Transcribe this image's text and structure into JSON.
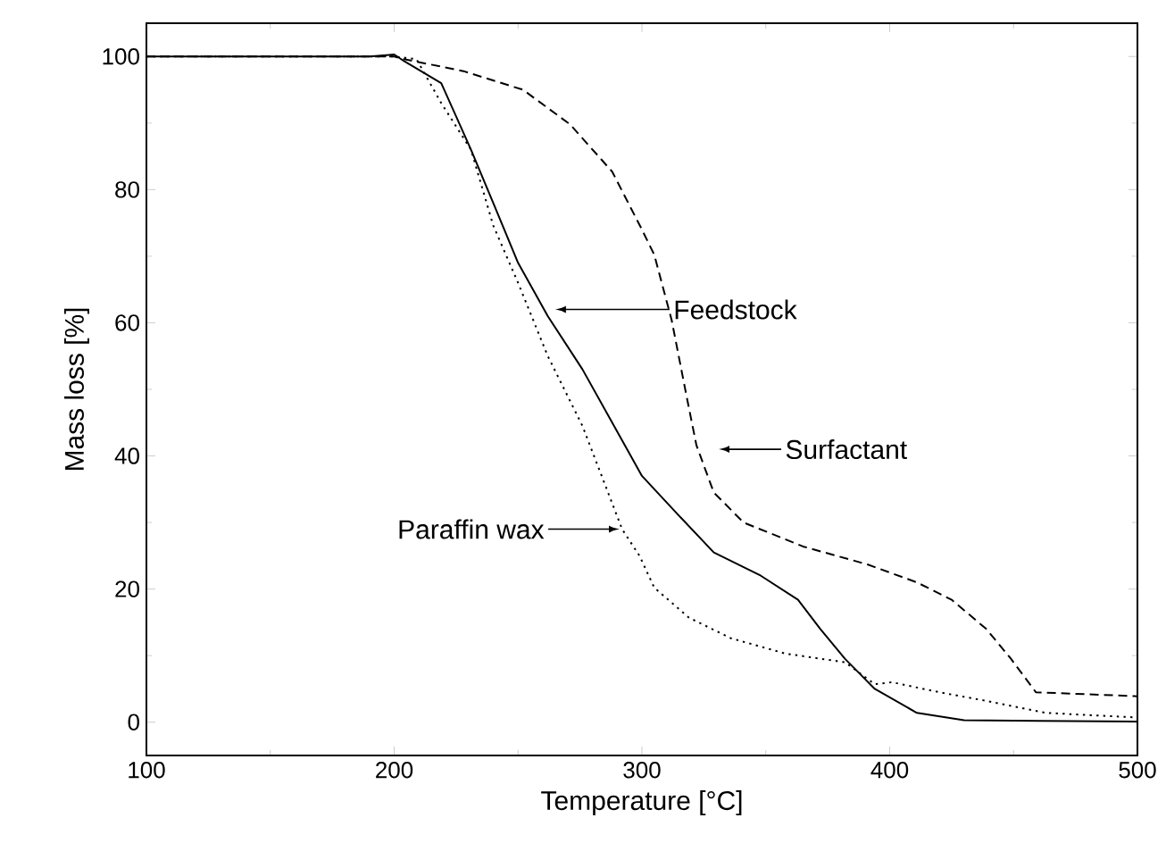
{
  "chart_data": {
    "type": "line",
    "xlabel": "Temperature [°C]",
    "ylabel": "Mass loss [%]",
    "xlim": [
      100,
      500
    ],
    "ylim": [
      -5,
      105
    ],
    "xticks": [
      100,
      200,
      300,
      400,
      500
    ],
    "yticks": [
      0,
      20,
      40,
      60,
      80,
      100
    ],
    "grid": false,
    "marker": "none",
    "series": [
      {
        "color": "#000000",
        "line_style": "solid",
        "x": [
          100,
          150,
          190,
          197,
          200,
          204,
          219,
          231,
          240,
          250,
          262,
          276,
          288,
          300,
          315,
          329,
          348,
          363,
          372,
          382,
          394,
          411,
          430,
          460,
          500
        ],
        "values": [
          100,
          100,
          100,
          100.2,
          100.3,
          99.3,
          96,
          86,
          78,
          69,
          61,
          53,
          45,
          37,
          31,
          25.5,
          22,
          18.4,
          14,
          9.5,
          5,
          1.4,
          0.3,
          0.2,
          0.1
        ]
      },
      {
        "color": "#000000",
        "line_style": "dotted",
        "x": [
          100,
          150,
          200,
          209,
          219,
          231,
          240,
          250,
          262,
          276,
          292,
          299,
          305,
          319,
          336,
          358,
          382,
          394,
          401,
          420,
          439,
          463,
          500
        ],
        "values": [
          100,
          100,
          100,
          99.6,
          93,
          86,
          74.6,
          66,
          55,
          44.5,
          29,
          25,
          20.2,
          15.7,
          12.6,
          10.3,
          9,
          5.7,
          6,
          4.5,
          3.2,
          1.4,
          0.7
        ]
      },
      {
        "color": "#000000",
        "line_style": "dashed",
        "x": [
          100,
          150,
          200,
          204,
          228,
          252,
          271,
          288,
          300,
          305,
          312,
          318,
          322,
          329,
          341,
          365,
          391,
          411,
          425,
          439,
          449,
          459,
          500
        ],
        "values": [
          100,
          100,
          100,
          99.6,
          97.8,
          95,
          89.8,
          82.7,
          74,
          70.2,
          60.4,
          49,
          41.6,
          34.5,
          30,
          26.4,
          23.7,
          21,
          18.4,
          14,
          9.5,
          4.5,
          3.9
        ]
      }
    ],
    "annotations": [
      "Feedstock",
      "Surfactant",
      "Paraffin wax"
    ]
  }
}
